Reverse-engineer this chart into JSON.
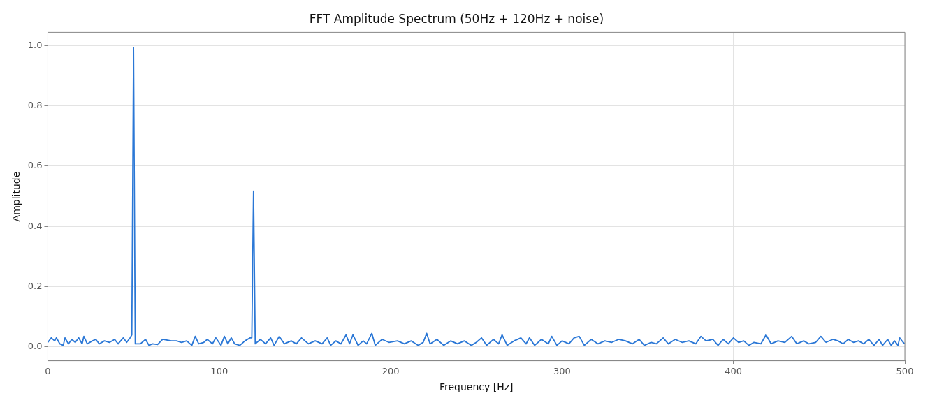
{
  "chart_data": {
    "type": "line",
    "title": "FFT Amplitude Spectrum (50Hz + 120Hz + noise)",
    "xlabel": "Frequency [Hz]",
    "ylabel": "Amplitude",
    "x": [
      0,
      2,
      4,
      5,
      7,
      9,
      10,
      12,
      14,
      16,
      18,
      20,
      21,
      23,
      26,
      28,
      30,
      33,
      36,
      39,
      41,
      44,
      46,
      48,
      49,
      50,
      51,
      54,
      57,
      59,
      61,
      64,
      67,
      72,
      75,
      78,
      81,
      84,
      86,
      88,
      91,
      93,
      96,
      98,
      101,
      103,
      105,
      107,
      109,
      112,
      115,
      118,
      119,
      120,
      121,
      124,
      127,
      130,
      132,
      135,
      138,
      142,
      145,
      148,
      152,
      156,
      160,
      163,
      165,
      168,
      171,
      174,
      176,
      178,
      181,
      184,
      186,
      189,
      191,
      195,
      199,
      204,
      208,
      212,
      216,
      219,
      221,
      223,
      227,
      231,
      235,
      239,
      243,
      247,
      250,
      253,
      256,
      260,
      263,
      265,
      268,
      272,
      276,
      279,
      281,
      284,
      288,
      292,
      294,
      297,
      300,
      304,
      307,
      310,
      313,
      317,
      321,
      325,
      329,
      333,
      337,
      341,
      345,
      348,
      352,
      355,
      359,
      362,
      366,
      370,
      374,
      378,
      381,
      384,
      388,
      391,
      394,
      397,
      400,
      403,
      406,
      409,
      412,
      416,
      419,
      422,
      426,
      430,
      434,
      437,
      441,
      444,
      448,
      451,
      454,
      458,
      461,
      464,
      467,
      470,
      473,
      476,
      479,
      482,
      485,
      487,
      490,
      492,
      494,
      496,
      497,
      499,
      500
    ],
    "series": [
      {
        "color": "#2a77d6",
        "values": [
          0.015,
          0.03,
          0.02,
          0.03,
          0.01,
          0.005,
          0.03,
          0.01,
          0.025,
          0.015,
          0.03,
          0.01,
          0.035,
          0.01,
          0.02,
          0.025,
          0.01,
          0.02,
          0.015,
          0.025,
          0.01,
          0.03,
          0.015,
          0.03,
          0.04,
          0.993,
          0.01,
          0.01,
          0.025,
          0.005,
          0.01,
          0.008,
          0.025,
          0.02,
          0.02,
          0.015,
          0.02,
          0.005,
          0.035,
          0.01,
          0.015,
          0.025,
          0.01,
          0.03,
          0.005,
          0.035,
          0.01,
          0.03,
          0.01,
          0.005,
          0.02,
          0.03,
          0.03,
          0.517,
          0.01,
          0.025,
          0.01,
          0.03,
          0.005,
          0.035,
          0.01,
          0.02,
          0.01,
          0.03,
          0.01,
          0.02,
          0.01,
          0.03,
          0.005,
          0.02,
          0.01,
          0.04,
          0.01,
          0.04,
          0.005,
          0.02,
          0.01,
          0.045,
          0.005,
          0.025,
          0.015,
          0.02,
          0.01,
          0.02,
          0.005,
          0.015,
          0.045,
          0.01,
          0.025,
          0.005,
          0.02,
          0.01,
          0.02,
          0.005,
          0.015,
          0.03,
          0.005,
          0.025,
          0.01,
          0.04,
          0.005,
          0.02,
          0.03,
          0.01,
          0.03,
          0.005,
          0.025,
          0.01,
          0.035,
          0.005,
          0.02,
          0.01,
          0.03,
          0.035,
          0.005,
          0.025,
          0.01,
          0.02,
          0.015,
          0.025,
          0.02,
          0.01,
          0.025,
          0.005,
          0.015,
          0.01,
          0.03,
          0.01,
          0.025,
          0.015,
          0.02,
          0.01,
          0.035,
          0.02,
          0.025,
          0.005,
          0.025,
          0.01,
          0.03,
          0.015,
          0.02,
          0.005,
          0.015,
          0.01,
          0.04,
          0.01,
          0.02,
          0.015,
          0.035,
          0.01,
          0.02,
          0.01,
          0.015,
          0.035,
          0.015,
          0.025,
          0.02,
          0.01,
          0.025,
          0.015,
          0.02,
          0.01,
          0.025,
          0.005,
          0.025,
          0.005,
          0.025,
          0.005,
          0.02,
          0.005,
          0.03,
          0.015,
          0.01
        ]
      }
    ],
    "xlim": [
      0,
      500
    ],
    "xticks": [
      0,
      100,
      200,
      300,
      400,
      500
    ],
    "ylim": [
      -0.046,
      1.044
    ],
    "yticks": [
      {
        "value": 0,
        "label": "0.0"
      },
      {
        "value": 0.2,
        "label": "0.2"
      },
      {
        "value": 0.4,
        "label": "0.4"
      },
      {
        "value": 0.6,
        "label": "0.6"
      },
      {
        "value": 0.8,
        "label": "0.8"
      },
      {
        "value": 1,
        "label": "1.0"
      }
    ],
    "grid": true,
    "legend": false,
    "marker": "none",
    "line_style": "solid"
  }
}
